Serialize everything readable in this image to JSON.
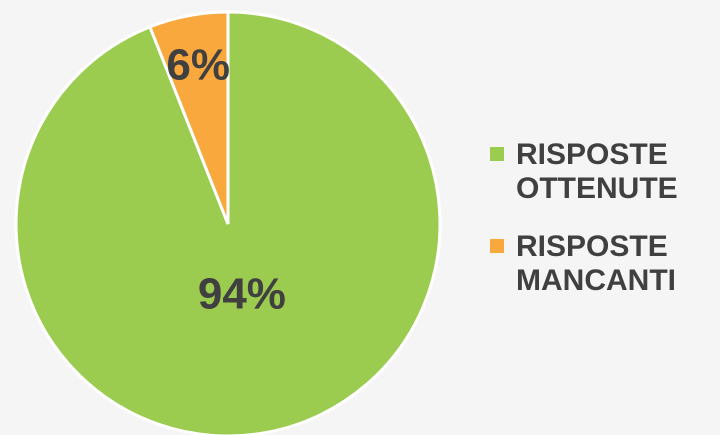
{
  "chart_data": {
    "type": "pie",
    "categories": [
      "RISPOSTE OTTENUTE",
      "RISPOSTE MANCANTI"
    ],
    "values": [
      94,
      6
    ],
    "value_labels": [
      "94%",
      "6%"
    ],
    "colors": [
      "#9bcc50",
      "#f8a83c"
    ],
    "legend": "right"
  }
}
